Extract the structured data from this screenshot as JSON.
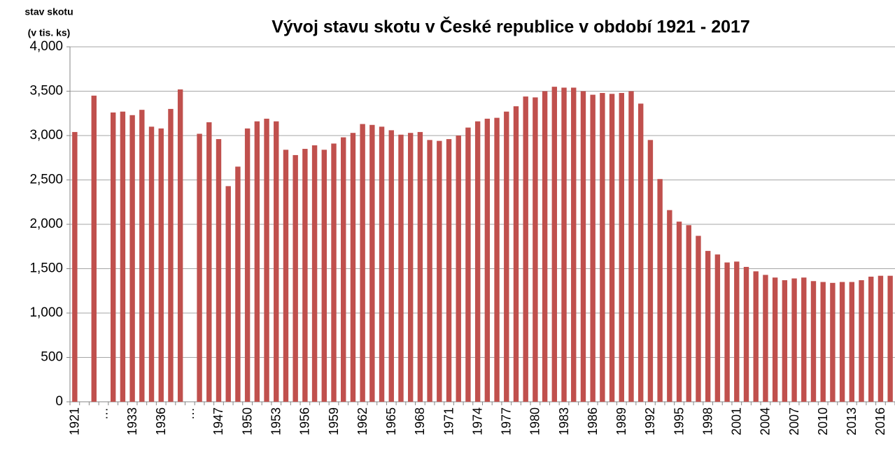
{
  "chart_data": {
    "type": "bar",
    "title": "Vývoj stavu skotu v České republice v období 1921 - 2017",
    "ylabel": [
      "stav skotu",
      "(v tis. ks)"
    ],
    "color": "#c0504d",
    "grid": true,
    "categories": [
      "1921",
      null,
      null,
      "…",
      null,
      null,
      "1933",
      null,
      null,
      "1936",
      null,
      null,
      "…",
      null,
      null,
      "1947",
      null,
      null,
      "1950",
      null,
      null,
      "1953",
      null,
      null,
      "1956",
      null,
      null,
      "1959",
      null,
      null,
      "1962",
      null,
      null,
      "1965",
      null,
      null,
      "1968",
      null,
      null,
      "1971",
      null,
      null,
      "1974",
      null,
      null,
      "1977",
      null,
      null,
      "1980",
      null,
      null,
      "1983",
      null,
      null,
      "1986",
      null,
      null,
      "1989",
      null,
      null,
      "1992",
      null,
      null,
      "1995",
      null,
      null,
      "1998",
      null,
      null,
      "2001",
      null,
      null,
      "2004",
      null,
      null,
      "2007",
      null,
      null,
      "2010",
      null,
      null,
      "2013",
      null,
      null,
      "2016",
      null
    ],
    "values": [
      3040,
      null,
      3450,
      null,
      3260,
      3270,
      3230,
      3290,
      3100,
      3080,
      3300,
      3520,
      null,
      3020,
      3150,
      2960,
      2430,
      2650,
      3080,
      3160,
      3190,
      3160,
      2840,
      2780,
      2850,
      2890,
      2840,
      2910,
      2980,
      3030,
      3130,
      3120,
      3100,
      3060,
      3010,
      3030,
      3040,
      2950,
      2940,
      2960,
      3000,
      3090,
      3160,
      3190,
      3200,
      3270,
      3330,
      3440,
      3430,
      3500,
      3550,
      3540,
      3540,
      3500,
      3460,
      3480,
      3470,
      3480,
      3500,
      3360,
      2950,
      2510,
      2160,
      2030,
      1990,
      1870,
      1700,
      1660,
      1570,
      1580,
      1520,
      1470,
      1430,
      1400,
      1370,
      1390,
      1400,
      1360,
      1350,
      1340,
      1350,
      1350,
      1370,
      1410,
      1420,
      1420
    ],
    "ylim": [
      0,
      4000
    ],
    "yticks": [
      0,
      500,
      {
        "value": 1000,
        "label": "1,000"
      },
      {
        "value": 1500,
        "label": "1,500"
      },
      {
        "value": 2000,
        "label": "2,000"
      },
      {
        "value": 2500,
        "label": "2,500"
      },
      {
        "value": 3000,
        "label": "3,000"
      },
      {
        "value": 3500,
        "label": "3,500"
      },
      {
        "value": 4000,
        "label": "4,000"
      }
    ]
  }
}
